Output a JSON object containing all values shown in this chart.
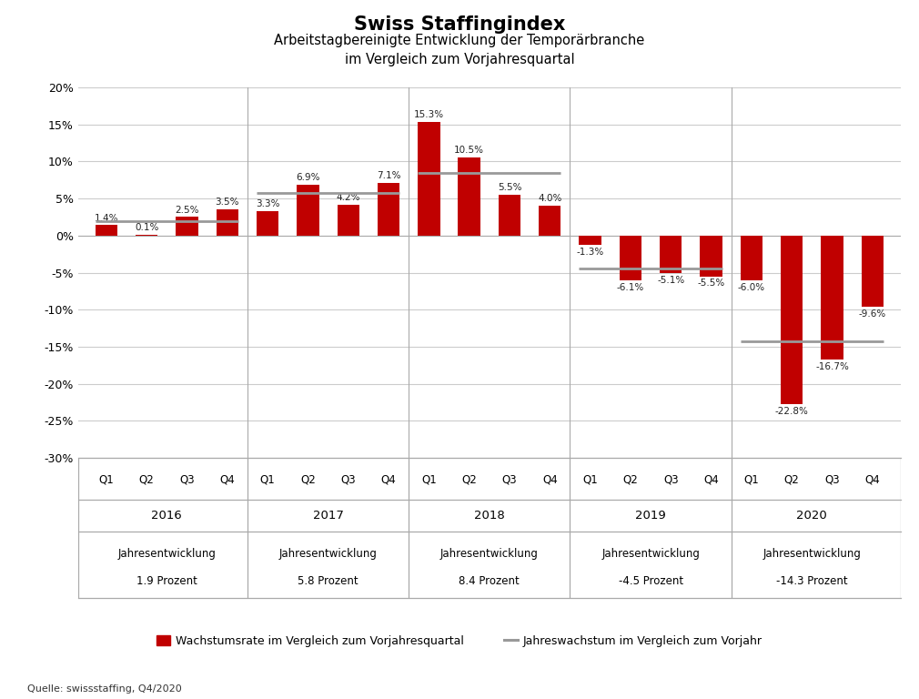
{
  "title_line1": "Swiss Staffingindex",
  "title_line2": "Arbeitstagbereinigte Entwicklung der Temporärbranche\nim Vergleich zum Vorjahresquartal",
  "bar_values": [
    1.4,
    0.1,
    2.5,
    3.5,
    3.3,
    6.9,
    4.2,
    7.1,
    15.3,
    10.5,
    5.5,
    4.0,
    -1.3,
    -6.1,
    -5.1,
    -5.5,
    -6.0,
    -22.8,
    -16.7,
    -9.6
  ],
  "bar_color": "#C00000",
  "annual_lines": [
    {
      "value": 1.9,
      "q_start": 0,
      "q_end": 3
    },
    {
      "value": 5.8,
      "q_start": 4,
      "q_end": 7
    },
    {
      "value": 8.4,
      "q_start": 8,
      "q_end": 11
    },
    {
      "value": -4.5,
      "q_start": 12,
      "q_end": 15
    },
    {
      "value": -14.3,
      "q_start": 16,
      "q_end": 19
    }
  ],
  "years": [
    "2016",
    "2017",
    "2018",
    "2019",
    "2020"
  ],
  "jahresentwicklung": [
    "1.9 Prozent",
    "5.8 Prozent",
    "8.4 Prozent",
    "-4.5 Prozent",
    "-14.3 Prozent"
  ],
  "quarters": [
    "Q1",
    "Q2",
    "Q3",
    "Q4",
    "Q1",
    "Q2",
    "Q3",
    "Q4",
    "Q1",
    "Q2",
    "Q3",
    "Q4",
    "Q1",
    "Q2",
    "Q3",
    "Q4",
    "Q1",
    "Q2",
    "Q3",
    "Q4"
  ],
  "ylim_min": -30,
  "ylim_max": 20,
  "yticks": [
    -30,
    -25,
    -20,
    -15,
    -10,
    -5,
    0,
    5,
    10,
    15,
    20
  ],
  "grid_color": "#CCCCCC",
  "sep_color": "#AAAAAA",
  "line_color": "#999999",
  "source_text": "Quelle: swissstaffing, Q4/2020",
  "legend_bar_label": "Wachstumsrate im Vergleich zum Vorjahresquartal",
  "legend_line_label": "Jahreswachstum im Vergleich zum Vorjahr",
  "bar_width": 0.55,
  "xlim_left": -0.7,
  "xlim_right": 19.7
}
